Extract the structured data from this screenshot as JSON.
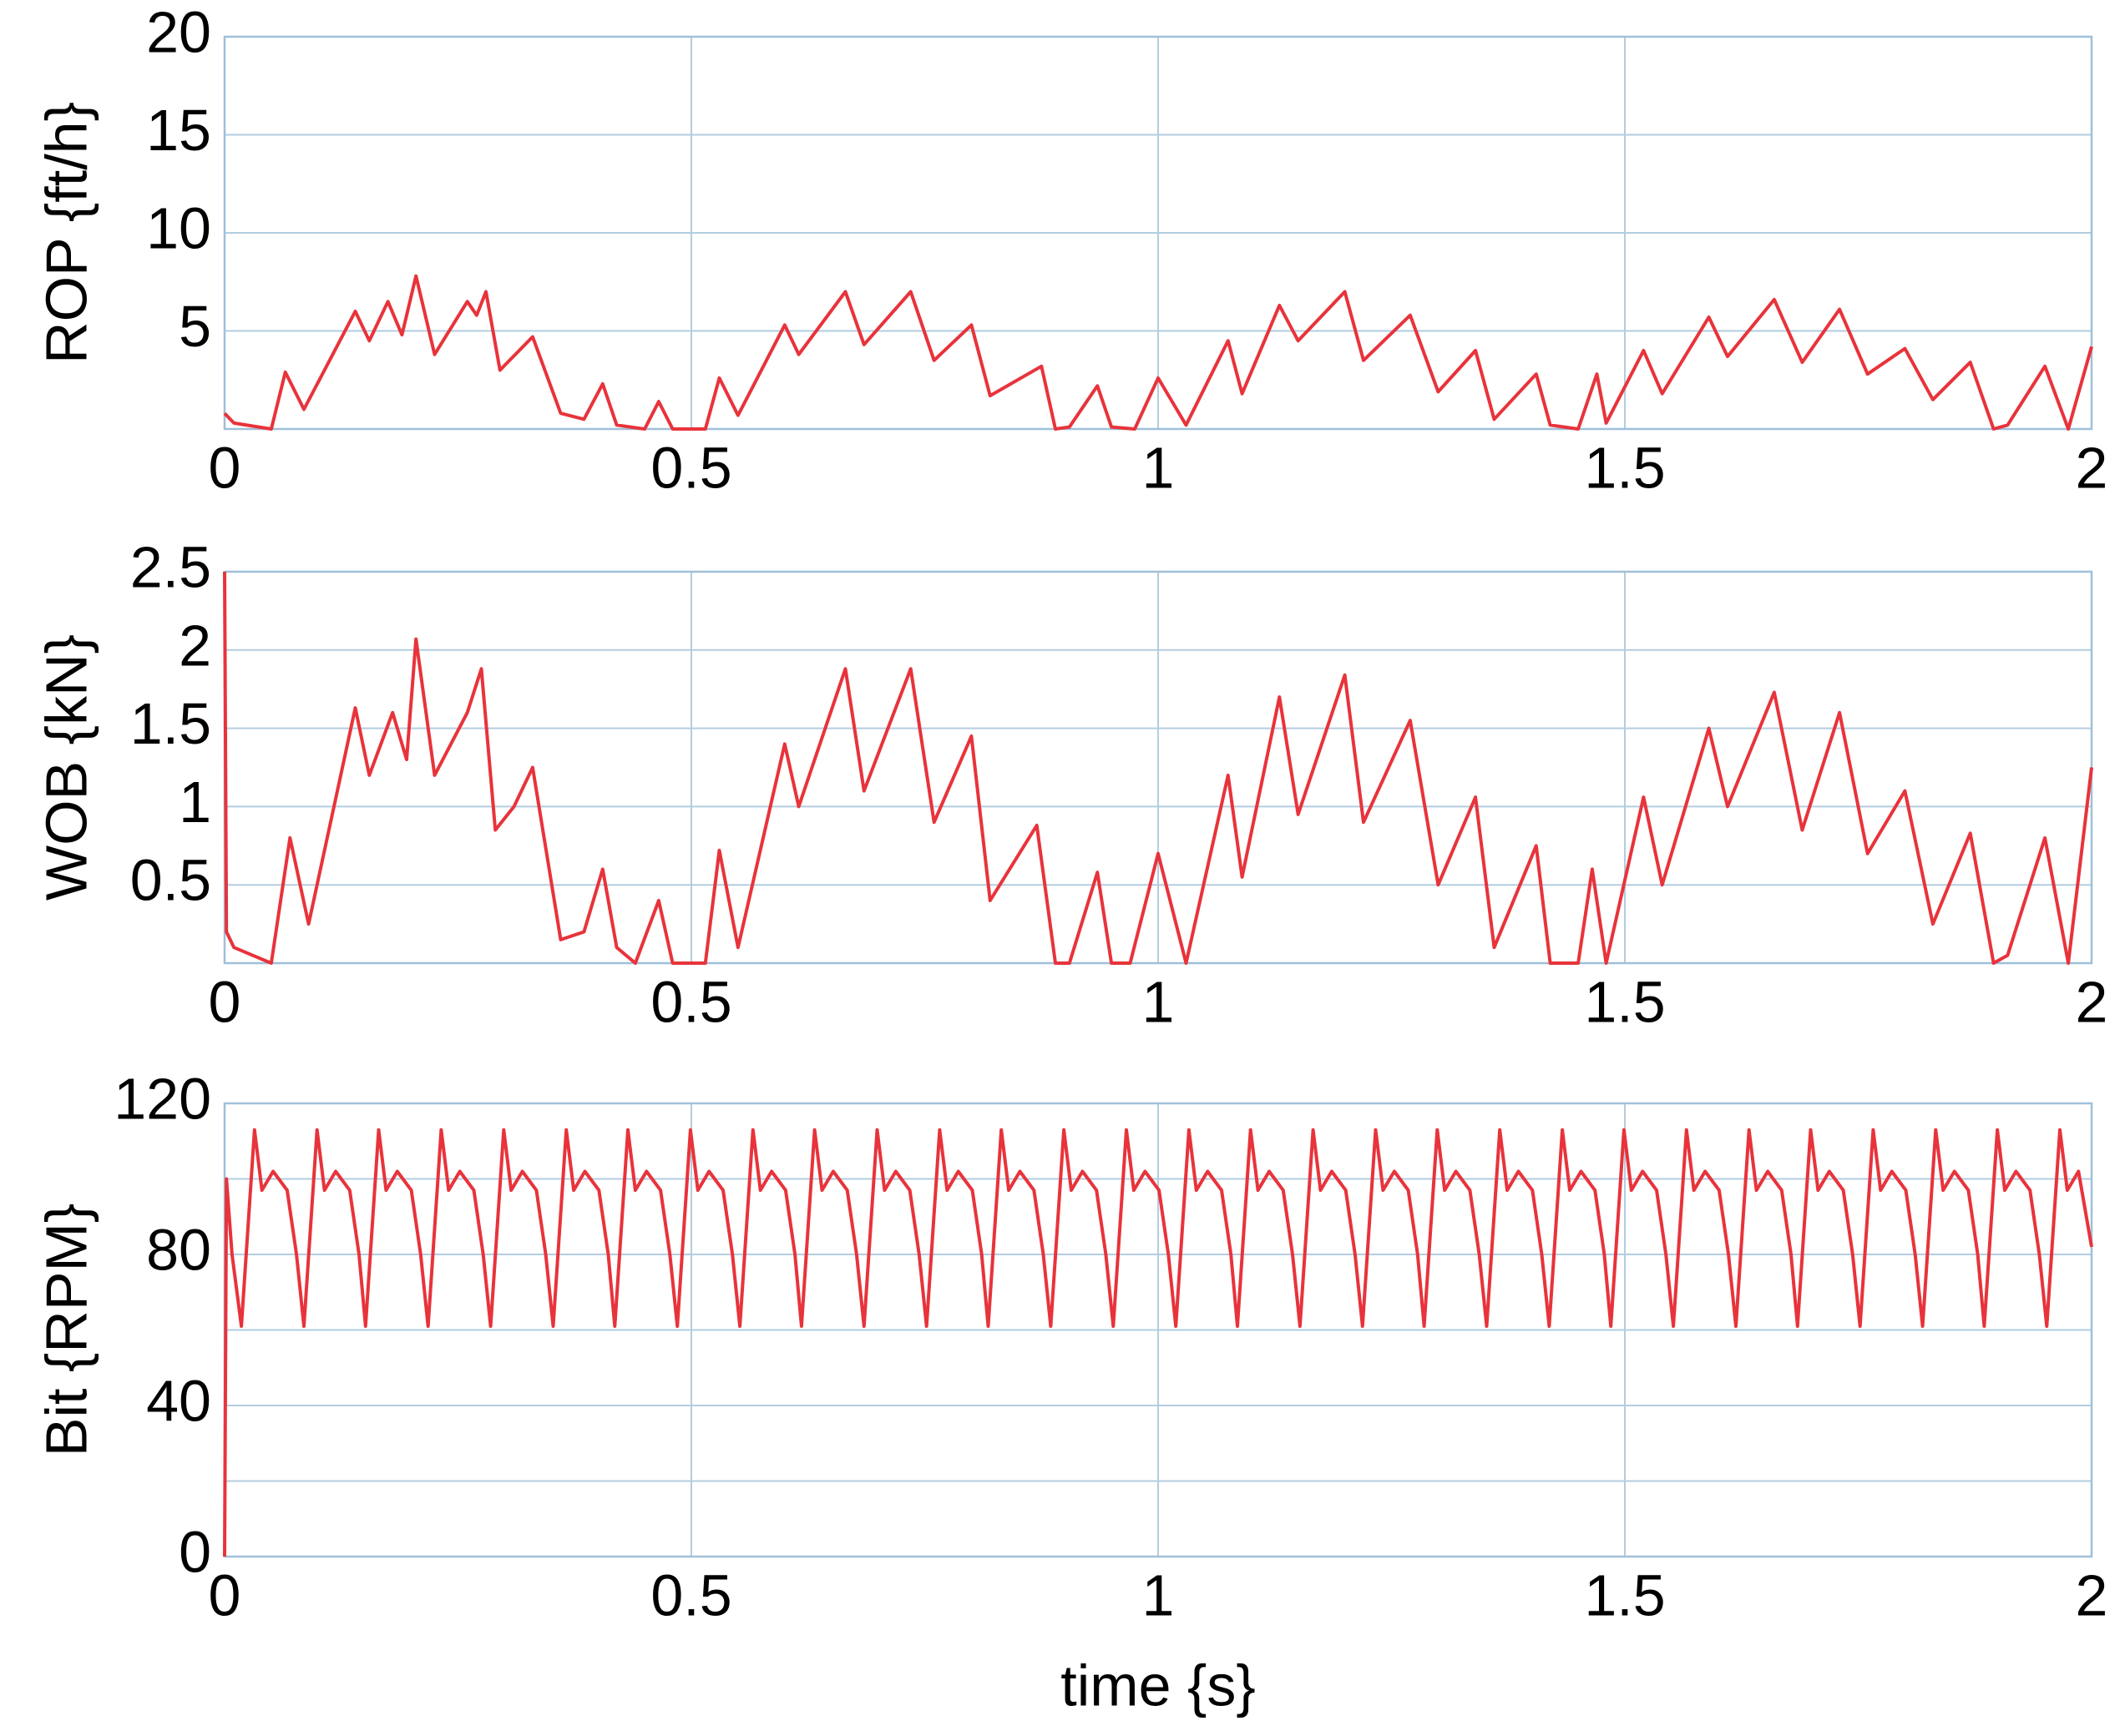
{
  "chart_data": [
    {
      "type": "line",
      "ylabel": "ROP {ft/h}",
      "x": [
        0,
        0.01,
        0.05,
        0.065,
        0.085,
        0.14,
        0.155,
        0.175,
        0.19,
        0.205,
        0.225,
        0.26,
        0.27,
        0.28,
        0.295,
        0.33,
        0.36,
        0.385,
        0.405,
        0.42,
        0.45,
        0.465,
        0.48,
        0.515,
        0.53,
        0.55,
        0.6,
        0.615,
        0.665,
        0.685,
        0.735,
        0.76,
        0.8,
        0.82,
        0.875,
        0.89,
        0.905,
        0.935,
        0.95,
        0.975,
        1.0,
        1.03,
        1.075,
        1.09,
        1.13,
        1.15,
        1.2,
        1.22,
        1.27,
        1.3,
        1.34,
        1.36,
        1.405,
        1.42,
        1.45,
        1.47,
        1.48,
        1.52,
        1.54,
        1.59,
        1.61,
        1.66,
        1.69,
        1.73,
        1.76,
        1.8,
        1.83,
        1.87,
        1.895,
        1.91,
        1.95,
        1.975,
        2.0
      ],
      "series": [
        {
          "color": "#e8333b",
          "values": [
            0.8,
            0.3,
            0,
            2.9,
            1.0,
            6.0,
            4.5,
            6.5,
            4.8,
            7.8,
            3.8,
            6.5,
            5.8,
            7.0,
            3.0,
            4.7,
            0.8,
            0.5,
            2.3,
            0.2,
            0,
            1.4,
            0,
            0,
            2.6,
            0.7,
            5.3,
            3.8,
            7.0,
            4.3,
            7.0,
            3.5,
            5.3,
            1.7,
            3.2,
            0,
            0.1,
            2.2,
            0.1,
            0,
            2.6,
            0.2,
            4.5,
            1.8,
            6.3,
            4.5,
            7.0,
            3.5,
            5.8,
            1.9,
            4.0,
            0.5,
            2.8,
            0.2,
            0,
            2.8,
            0.3,
            4.0,
            1.8,
            5.7,
            3.7,
            6.6,
            3.4,
            6.1,
            2.8,
            4.1,
            1.5,
            3.4,
            0,
            0.2,
            3.2,
            0,
            4.2
          ]
        }
      ],
      "xlim": [
        0,
        2
      ],
      "xticks": [
        0,
        0.5,
        1,
        1.5,
        2
      ],
      "ylim": [
        0,
        20
      ],
      "yticks": [
        5,
        10,
        15,
        20
      ],
      "grid": true
    },
    {
      "type": "line",
      "ylabel": "WOB {kN}",
      "x": [
        0,
        0.002,
        0.01,
        0.05,
        0.07,
        0.09,
        0.14,
        0.155,
        0.18,
        0.195,
        0.205,
        0.225,
        0.26,
        0.275,
        0.29,
        0.31,
        0.33,
        0.36,
        0.385,
        0.405,
        0.42,
        0.44,
        0.465,
        0.48,
        0.515,
        0.53,
        0.55,
        0.6,
        0.615,
        0.665,
        0.685,
        0.735,
        0.76,
        0.8,
        0.82,
        0.87,
        0.89,
        0.905,
        0.935,
        0.95,
        0.97,
        1.0,
        1.03,
        1.075,
        1.09,
        1.13,
        1.15,
        1.2,
        1.22,
        1.27,
        1.3,
        1.34,
        1.36,
        1.405,
        1.42,
        1.45,
        1.465,
        1.48,
        1.52,
        1.54,
        1.59,
        1.61,
        1.66,
        1.69,
        1.73,
        1.76,
        1.8,
        1.83,
        1.87,
        1.895,
        1.91,
        1.95,
        1.975,
        2.0
      ],
      "series": [
        {
          "color": "#e8333b",
          "values": [
            2.5,
            0.2,
            0.1,
            0,
            0.8,
            0.25,
            1.63,
            1.2,
            1.6,
            1.3,
            2.07,
            1.2,
            1.6,
            1.88,
            0.85,
            1.0,
            1.25,
            0.15,
            0.2,
            0.6,
            0.1,
            0,
            0.4,
            0,
            0,
            0.72,
            0.1,
            1.4,
            1.0,
            1.88,
            1.1,
            1.88,
            0.9,
            1.45,
            0.4,
            0.88,
            0,
            0,
            0.58,
            0,
            0,
            0.7,
            0,
            1.2,
            0.55,
            1.7,
            0.95,
            1.84,
            0.9,
            1.55,
            0.5,
            1.06,
            0.1,
            0.75,
            0,
            0,
            0.6,
            0,
            1.06,
            0.5,
            1.5,
            1.0,
            1.73,
            0.85,
            1.6,
            0.7,
            1.1,
            0.25,
            0.83,
            0,
            0.05,
            0.8,
            0,
            1.25
          ]
        }
      ],
      "xlim": [
        0,
        2
      ],
      "xticks": [
        0,
        0.5,
        1,
        1.5,
        2
      ],
      "ylim": [
        0,
        2.5
      ],
      "yticks": [
        0.5,
        1,
        1.5,
        2,
        2.5
      ],
      "grid": true
    },
    {
      "type": "line",
      "ylabel": "Bit {RPM}",
      "xlabel": "time {s}",
      "x": [
        0,
        0.002,
        0.008,
        0.018,
        0.032,
        0.04,
        0.052,
        0.067,
        0.077,
        0.085,
        0.099,
        0.107,
        0.119,
        0.134,
        0.144,
        0.151,
        0.165,
        0.173,
        0.185,
        0.2,
        0.21,
        0.218,
        0.232,
        0.24,
        0.252,
        0.267,
        0.277,
        0.285,
        0.299,
        0.307,
        0.319,
        0.334,
        0.344,
        0.352,
        0.366,
        0.374,
        0.386,
        0.401,
        0.411,
        0.418,
        0.432,
        0.44,
        0.452,
        0.467,
        0.477,
        0.485,
        0.499,
        0.507,
        0.519,
        0.534,
        0.544,
        0.552,
        0.566,
        0.574,
        0.586,
        0.601,
        0.611,
        0.618,
        0.632,
        0.64,
        0.652,
        0.667,
        0.677,
        0.685,
        0.699,
        0.707,
        0.719,
        0.734,
        0.744,
        0.752,
        0.766,
        0.774,
        0.786,
        0.801,
        0.811,
        0.818,
        0.832,
        0.84,
        0.852,
        0.867,
        0.877,
        0.885,
        0.899,
        0.907,
        0.919,
        0.934,
        0.944,
        0.952,
        0.966,
        0.974,
        0.986,
        1.001,
        1.011,
        1.019,
        1.033,
        1.041,
        1.053,
        1.068,
        1.078,
        1.085,
        1.099,
        1.107,
        1.119,
        1.134,
        1.144,
        1.152,
        1.166,
        1.174,
        1.186,
        1.201,
        1.211,
        1.219,
        1.233,
        1.241,
        1.253,
        1.268,
        1.278,
        1.285,
        1.299,
        1.307,
        1.319,
        1.334,
        1.344,
        1.352,
        1.366,
        1.374,
        1.386,
        1.401,
        1.411,
        1.419,
        1.433,
        1.441,
        1.453,
        1.468,
        1.478,
        1.485,
        1.499,
        1.507,
        1.519,
        1.534,
        1.544,
        1.552,
        1.566,
        1.574,
        1.586,
        1.601,
        1.611,
        1.619,
        1.633,
        1.641,
        1.653,
        1.668,
        1.678,
        1.685,
        1.699,
        1.707,
        1.719,
        1.734,
        1.744,
        1.752,
        1.766,
        1.774,
        1.786,
        1.801,
        1.811,
        1.819,
        1.833,
        1.841,
        1.853,
        1.868,
        1.878,
        1.885,
        1.899,
        1.907,
        1.919,
        1.934,
        1.944,
        1.952,
        1.966,
        1.974,
        1.986,
        2.0
      ],
      "series": [
        {
          "color": "#e8333b",
          "values": [
            0,
            100,
            80,
            61,
            113,
            97,
            102,
            97,
            80,
            61,
            113,
            97,
            102,
            97,
            80,
            61,
            113,
            97,
            102,
            97,
            80,
            61,
            113,
            97,
            102,
            97,
            80,
            61,
            113,
            97,
            102,
            97,
            80,
            61,
            113,
            97,
            102,
            97,
            80,
            61,
            113,
            97,
            102,
            97,
            80,
            61,
            113,
            97,
            102,
            97,
            80,
            61,
            113,
            97,
            102,
            97,
            80,
            61,
            113,
            97,
            102,
            97,
            80,
            61,
            113,
            97,
            102,
            97,
            80,
            61,
            113,
            97,
            102,
            97,
            80,
            61,
            113,
            97,
            102,
            97,
            80,
            61,
            113,
            97,
            102,
            97,
            80,
            61,
            113,
            97,
            102,
            97,
            80,
            61,
            113,
            97,
            102,
            97,
            80,
            61,
            113,
            97,
            102,
            97,
            80,
            61,
            113,
            97,
            102,
            97,
            80,
            61,
            113,
            97,
            102,
            97,
            80,
            61,
            113,
            97,
            102,
            97,
            80,
            61,
            113,
            97,
            102,
            97,
            80,
            61,
            113,
            97,
            102,
            97,
            80,
            61,
            113,
            97,
            102,
            97,
            80,
            61,
            113,
            97,
            102,
            97,
            80,
            61,
            113,
            97,
            102,
            97,
            80,
            61,
            113,
            97,
            102,
            97,
            80,
            61,
            113,
            97,
            102,
            97,
            80,
            61,
            113,
            97,
            102,
            97,
            80,
            61,
            113,
            97,
            102,
            97,
            80,
            61,
            113,
            97,
            102,
            82
          ]
        }
      ],
      "xlim": [
        0,
        2
      ],
      "xticks": [
        0,
        0.5,
        1,
        1.5,
        2
      ],
      "ylim": [
        0,
        120
      ],
      "yticks": [
        0,
        40,
        80,
        120
      ],
      "minor_yticks": [
        20,
        60,
        100
      ],
      "grid": true
    }
  ]
}
